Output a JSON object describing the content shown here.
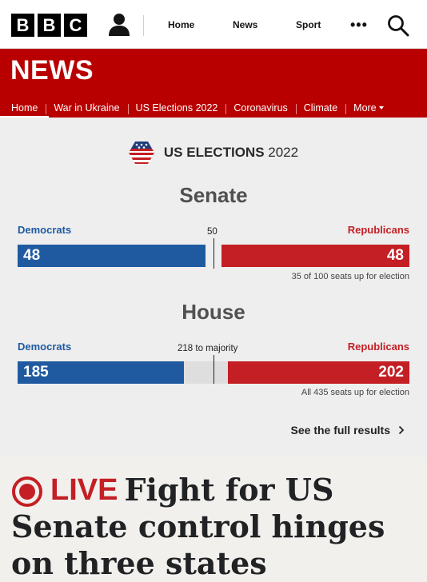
{
  "brand": {
    "logo_letters": [
      "B",
      "B",
      "C"
    ]
  },
  "topnav": {
    "items": [
      "Home",
      "News",
      "Sport"
    ],
    "more_label": "•••"
  },
  "news": {
    "title": "NEWS",
    "nav": [
      "Home",
      "War in Ukraine",
      "US Elections 2022",
      "Coronavirus",
      "Climate",
      "More"
    ],
    "active_index": 0
  },
  "elections": {
    "header_bold": "US ELECTIONS",
    "header_year": "2022",
    "senate": {
      "title": "Senate",
      "dem_label": "Democrats",
      "rep_label": "Republicans",
      "dem_seats": "48",
      "rep_seats": "48",
      "majority_label": "50",
      "note": "35 of 100 seats up for election"
    },
    "house": {
      "title": "House",
      "dem_label": "Democrats",
      "rep_label": "Republicans",
      "dem_seats": "185",
      "rep_seats": "202",
      "majority_label": "218 to majority",
      "note": "All 435 seats up for election"
    },
    "full_results_label": "See the full results"
  },
  "headline": {
    "live_label": "LIVE",
    "text": "Fight for US Senate control hinges on three states"
  },
  "colors": {
    "bbc_red": "#b80000",
    "democrat_blue": "#1f5aa0",
    "republican_red": "#c31f24",
    "widget_bg": "#eeeeee"
  },
  "icons": [
    "account-icon",
    "more-icon",
    "search-icon",
    "elections-badge-icon",
    "chevron-right-icon",
    "live-icon"
  ]
}
